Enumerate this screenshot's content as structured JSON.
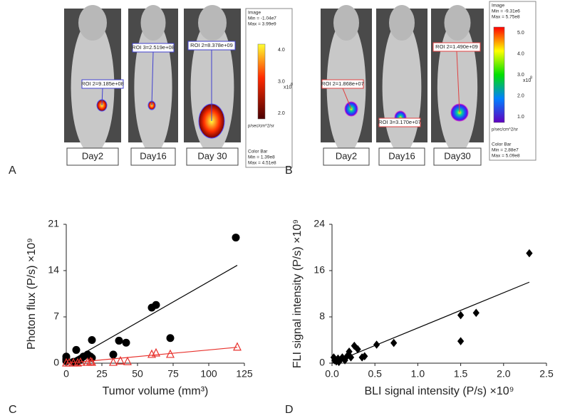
{
  "panels": [
    {
      "letter": "A",
      "days": [
        "Day2",
        "Day16",
        "Day 30"
      ],
      "rois": [
        "ROI 2=9.185e+08",
        "ROI 3=2.519e+08",
        "ROI 2=8.378e+09"
      ],
      "colorbar": {
        "header": [
          "Image",
          "Min = -1.04e7",
          "Max = 3.99e9"
        ],
        "ticks": [
          "4.0",
          "3.0",
          "2.0"
        ],
        "exponent": "x10",
        "exponent_power": "8",
        "unit": "p/sec/cm^2/sr",
        "footer": [
          "Color Bar",
          "Min = 1.39e8",
          "Max = 4.51e8"
        ]
      }
    },
    {
      "letter": "B",
      "days": [
        "Day2",
        "Day16",
        "Day30"
      ],
      "rois": [
        "ROI 2=1.868e+07",
        "ROI 3=3.170e+07",
        "ROI 2=1.490e+09"
      ],
      "colorbar": {
        "header": [
          "Image",
          "Min = -9.31e6",
          "Max = 5.75e8"
        ],
        "ticks": [
          "5.0",
          "4.0",
          "3.0",
          "2.0",
          "1.0"
        ],
        "exponent": "x10",
        "exponent_power": "8",
        "unit": "p/sec/cm^2/sr",
        "footer": [
          "Color Bar",
          "Min = 2.88e7",
          "Max = 5.09e8"
        ]
      }
    }
  ],
  "chart_data": [
    {
      "type": "scatter",
      "panel_label": "C",
      "x_label": "Tumor volume (mm³)",
      "y_label": "Photon flux (P/s) ×10⁹",
      "xlim": [
        0,
        125
      ],
      "xticks": [
        0,
        25,
        50,
        75,
        100,
        125
      ],
      "ylim": [
        0,
        21
      ],
      "yticks": [
        0,
        7,
        14,
        21
      ],
      "series": [
        {
          "marker": "circle",
          "color": "#000000",
          "filled": true,
          "x": [
            0,
            0,
            0,
            5,
            7,
            8,
            10,
            12,
            15,
            17,
            18,
            18,
            33,
            37,
            42,
            60,
            63,
            73,
            119
          ],
          "values": [
            0.3,
            0.6,
            1.0,
            0.2,
            2.0,
            0.3,
            0.5,
            1.0,
            1.3,
            1.0,
            0.8,
            3.5,
            1.3,
            3.4,
            3.1,
            8.4,
            8.8,
            3.8,
            19.0
          ],
          "trend": {
            "x": [
              0,
              120
            ],
            "values": [
              0,
              14.8
            ]
          }
        },
        {
          "marker": "triangle",
          "color": "#e8312c",
          "filled": false,
          "x": [
            0,
            2,
            5,
            8,
            10,
            15,
            17,
            18,
            33,
            38,
            43,
            60,
            63,
            73,
            120
          ],
          "values": [
            0,
            0,
            0,
            0,
            0.1,
            0.1,
            0.2,
            0.1,
            0.1,
            0.3,
            0.2,
            1.3,
            1.5,
            1.3,
            2.4
          ],
          "trend": {
            "x": [
              0,
              120
            ],
            "values": [
              0,
              2.4
            ]
          }
        }
      ]
    },
    {
      "type": "scatter",
      "panel_label": "D",
      "x_label": "BLI signal intensity (P/s) ×10⁹",
      "y_label": "FLI signal intensity (P/s) ×10⁹",
      "xlim": [
        0,
        2.5
      ],
      "xticks": [
        {
          "value": 0,
          "label": "0.0"
        },
        0.5,
        {
          "value": 1,
          "label": "1.0"
        },
        1.5,
        {
          "value": 2,
          "label": "2.0"
        },
        2.5
      ],
      "ylim": [
        0,
        24
      ],
      "yticks": [
        0,
        8,
        16,
        24
      ],
      "series": [
        {
          "marker": "diamond",
          "color": "#000000",
          "filled": true,
          "x": [
            0.02,
            0.03,
            0.05,
            0.07,
            0.08,
            0.1,
            0.12,
            0.15,
            0.18,
            0.2,
            0.22,
            0.26,
            0.3,
            0.35,
            0.38,
            0.52,
            0.72,
            1.5,
            1.5,
            1.68,
            2.3
          ],
          "values": [
            1.0,
            0.5,
            0.3,
            0.8,
            0.2,
            0.6,
            1.0,
            0.5,
            1.3,
            2.0,
            1.0,
            3.0,
            2.4,
            1.0,
            1.2,
            3.2,
            3.5,
            8.3,
            3.8,
            8.7,
            19.0
          ],
          "trend": {
            "x": [
              0,
              2.3
            ],
            "values": [
              0,
              14
            ]
          }
        }
      ]
    }
  ]
}
